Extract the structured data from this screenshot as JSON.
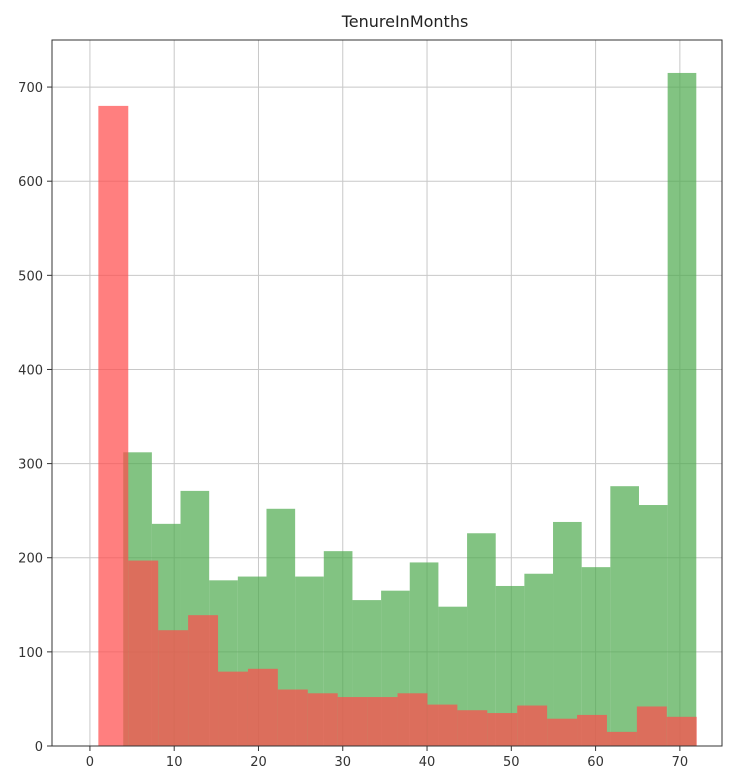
{
  "chart_data": {
    "type": "bar",
    "title": "TenureInMonths",
    "xlabel": "",
    "ylabel": "",
    "xlim": [
      -4.5,
      75
    ],
    "ylim": [
      0,
      750
    ],
    "x_ticks": [
      0,
      10,
      20,
      30,
      40,
      50,
      60,
      70
    ],
    "y_ticks": [
      0,
      100,
      200,
      300,
      400,
      500,
      600,
      700
    ],
    "grid": true,
    "series": [
      {
        "color": "#4daa4d",
        "opacity": 0.7,
        "bins": [
          {
            "x0": 3.95,
            "x1": 7.35,
            "value": 312
          },
          {
            "x0": 7.35,
            "x1": 10.75,
            "value": 236
          },
          {
            "x0": 10.75,
            "x1": 14.15,
            "value": 271
          },
          {
            "x0": 14.15,
            "x1": 17.55,
            "value": 176
          },
          {
            "x0": 17.55,
            "x1": 20.95,
            "value": 180
          },
          {
            "x0": 20.95,
            "x1": 24.35,
            "value": 252
          },
          {
            "x0": 24.35,
            "x1": 27.75,
            "value": 180
          },
          {
            "x0": 27.75,
            "x1": 31.15,
            "value": 207
          },
          {
            "x0": 31.15,
            "x1": 34.55,
            "value": 155
          },
          {
            "x0": 34.55,
            "x1": 37.95,
            "value": 165
          },
          {
            "x0": 37.95,
            "x1": 41.35,
            "value": 195
          },
          {
            "x0": 41.35,
            "x1": 44.75,
            "value": 148
          },
          {
            "x0": 44.75,
            "x1": 48.15,
            "value": 226
          },
          {
            "x0": 48.15,
            "x1": 51.55,
            "value": 170
          },
          {
            "x0": 51.55,
            "x1": 54.95,
            "value": 183
          },
          {
            "x0": 54.95,
            "x1": 58.35,
            "value": 238
          },
          {
            "x0": 58.35,
            "x1": 61.75,
            "value": 190
          },
          {
            "x0": 61.75,
            "x1": 65.15,
            "value": 276
          },
          {
            "x0": 65.15,
            "x1": 68.55,
            "value": 256
          },
          {
            "x0": 68.55,
            "x1": 71.95,
            "value": 715
          }
        ]
      },
      {
        "color": "#ff4d4d",
        "opacity": 0.72,
        "bins": [
          {
            "x0": 1.0,
            "x1": 4.55,
            "value": 680
          },
          {
            "x0": 4.55,
            "x1": 8.1,
            "value": 197
          },
          {
            "x0": 8.1,
            "x1": 11.65,
            "value": 123
          },
          {
            "x0": 11.65,
            "x1": 15.2,
            "value": 139
          },
          {
            "x0": 15.2,
            "x1": 18.75,
            "value": 79
          },
          {
            "x0": 18.75,
            "x1": 22.3,
            "value": 82
          },
          {
            "x0": 22.3,
            "x1": 25.85,
            "value": 60
          },
          {
            "x0": 25.85,
            "x1": 29.4,
            "value": 56
          },
          {
            "x0": 29.4,
            "x1": 32.95,
            "value": 52
          },
          {
            "x0": 32.95,
            "x1": 36.5,
            "value": 52
          },
          {
            "x0": 36.5,
            "x1": 40.05,
            "value": 56
          },
          {
            "x0": 40.05,
            "x1": 43.6,
            "value": 44
          },
          {
            "x0": 43.6,
            "x1": 47.15,
            "value": 38
          },
          {
            "x0": 47.15,
            "x1": 50.7,
            "value": 35
          },
          {
            "x0": 50.7,
            "x1": 54.25,
            "value": 43
          },
          {
            "x0": 54.25,
            "x1": 57.8,
            "value": 29
          },
          {
            "x0": 57.8,
            "x1": 61.35,
            "value": 33
          },
          {
            "x0": 61.35,
            "x1": 64.9,
            "value": 15
          },
          {
            "x0": 64.9,
            "x1": 68.45,
            "value": 42
          },
          {
            "x0": 68.45,
            "x1": 72.0,
            "value": 31
          }
        ]
      }
    ]
  }
}
